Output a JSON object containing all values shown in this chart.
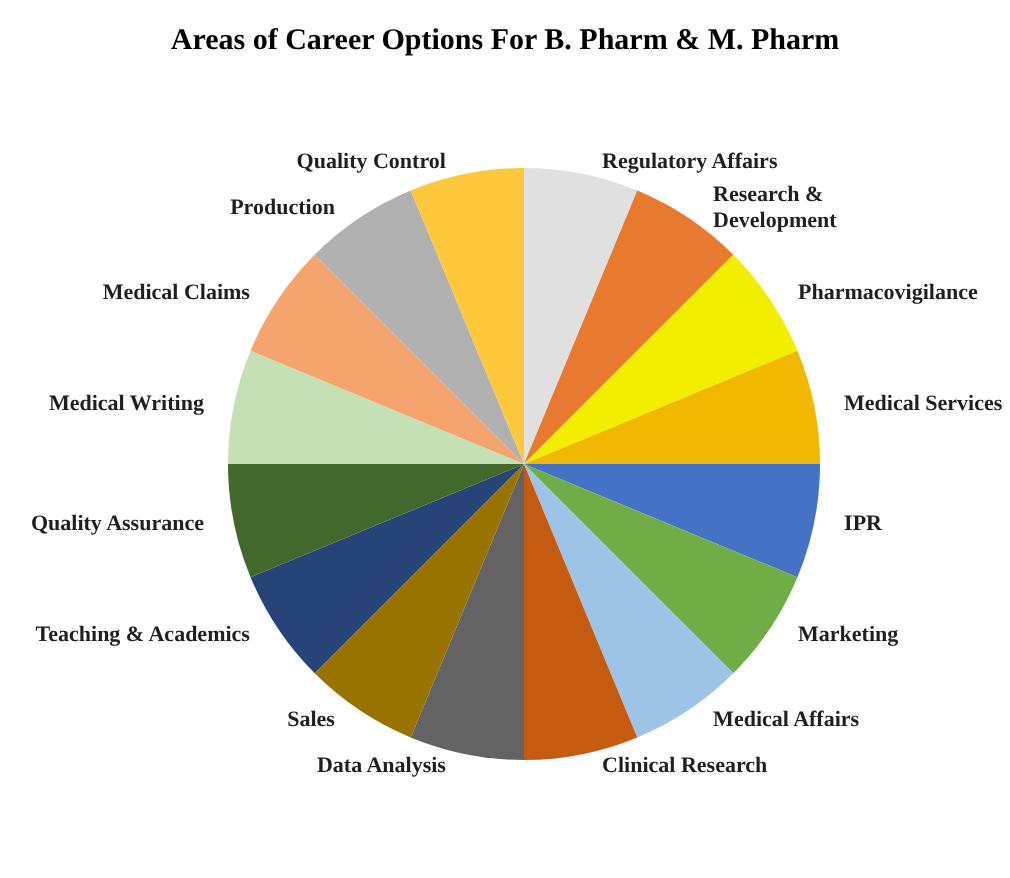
{
  "chart_data": {
    "type": "pie",
    "title": "Areas of Career Options For B. Pharm & M. Pharm",
    "categories": [
      "Regulatory Affairs",
      "Research & Development",
      "Pharmacovigilance",
      "Medical Services",
      "IPR",
      "Marketing",
      "Medical Affairs",
      "Clinical Research",
      "Data Analysis",
      "Sales",
      "Teaching & Academics",
      "Quality Assurance",
      "Medical Writing",
      "Medical Claims",
      "Production",
      "Quality Control"
    ],
    "values": [
      6.25,
      6.25,
      6.25,
      6.25,
      6.25,
      6.25,
      6.25,
      6.25,
      6.25,
      6.25,
      6.25,
      6.25,
      6.25,
      6.25,
      6.25,
      6.25
    ],
    "colors": [
      "#e0e0e0",
      "#e87a30",
      "#f2ee00",
      "#f2b800",
      "#4472c4",
      "#70ad47",
      "#9dc3e6",
      "#c55a11",
      "#636363",
      "#997300",
      "#264478",
      "#43682b",
      "#c5e0b4",
      "#f4a46c",
      "#b0b0b0",
      "#ffc83c"
    ],
    "legend": false
  }
}
